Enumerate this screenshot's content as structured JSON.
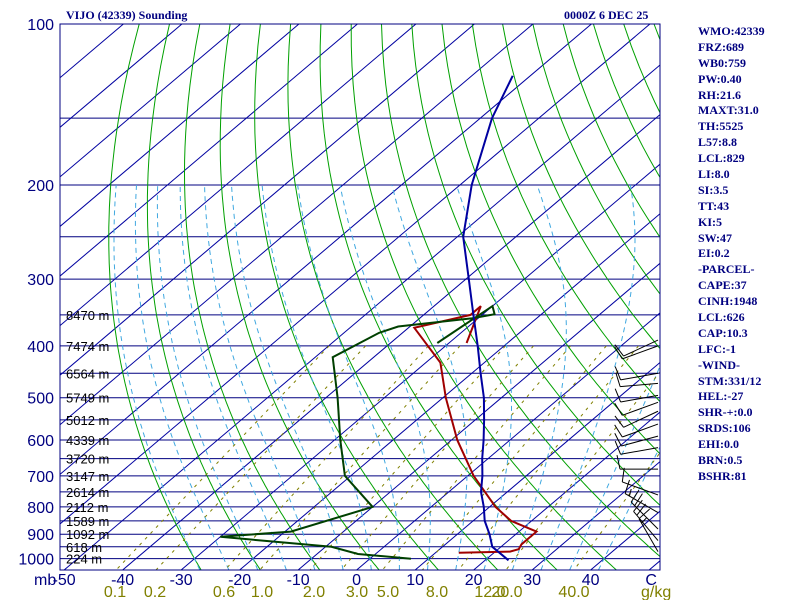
{
  "header": {
    "station": "VIJO (42339) Sounding",
    "time": "0000Z  6 DEC 25"
  },
  "indices": [
    "WMO:42339",
    "FRZ:689",
    "WB0:759",
    "PW:0.40",
    "RH:21.6",
    "MAXT:31.0",
    "TH:5525",
    "L57:8.8",
    "LCL:829",
    "LI:8.0",
    "SI:3.5",
    "TT:43",
    "KI:5",
    "SW:47",
    "EI:0.2",
    "-PARCEL-",
    "CAPE:37",
    "CINH:1948",
    "LCL:626",
    "CAP:10.3",
    "LFC:-1",
    "-WIND-",
    "STM:331/12",
    "HEL:-27",
    "SHR-+:0.0",
    "SRDS:106",
    "EHI:0.0",
    "BRN:0.5",
    "BSHR:81"
  ],
  "colors": {
    "frame": "#000080",
    "isobar": "#000080",
    "isotherm": "#0000a0",
    "dry_adiabat": "#00a000",
    "moist_adiabat": "#40a8e0",
    "mixing_ratio": "#808000",
    "temperature": "#0000a0",
    "dewpoint": "#004000",
    "parcel": "#a00000",
    "wind": "#000000"
  },
  "chart_data": {
    "type": "skew-t",
    "title": "VIJO (42339) Sounding",
    "pressure_unit_label": "mb",
    "mixing_ratio_unit_label": "g/kg",
    "pressure_ticks": [
      "100",
      "200",
      "300",
      "400",
      "500",
      "600",
      "700",
      "800",
      "900",
      "1000"
    ],
    "temperature_ticks": [
      "-50",
      "-40",
      "-30",
      "-20",
      "-10",
      "0",
      "10",
      "20",
      "30",
      "40",
      "C"
    ],
    "mixing_ratio_labels": [
      "0.1",
      "0.2",
      "0.6",
      "1.0",
      "2.0",
      "3.0",
      "5.0",
      "8.0",
      "12.0",
      "20.0",
      "40.0"
    ],
    "height_labels": [
      {
        "p": 350,
        "text": "8470 m"
      },
      {
        "p": 400,
        "text": "7474 m"
      },
      {
        "p": 450,
        "text": "6564 m"
      },
      {
        "p": 500,
        "text": "5749 m"
      },
      {
        "p": 550,
        "text": "5012 m"
      },
      {
        "p": 600,
        "text": "4339 m"
      },
      {
        "p": 650,
        "text": "3720 m"
      },
      {
        "p": 700,
        "text": "3147 m"
      },
      {
        "p": 750,
        "text": "2614 m"
      },
      {
        "p": 800,
        "text": "2112 m"
      },
      {
        "p": 850,
        "text": "1589 m"
      },
      {
        "p": 900,
        "text": "1092 m"
      },
      {
        "p": 950,
        "text": "618 m"
      },
      {
        "p": 1000,
        "text": "224 m"
      }
    ],
    "temperature_profile": [
      {
        "p": 1007,
        "t": 24.0
      },
      {
        "p": 950,
        "t": 18.5
      },
      {
        "p": 900,
        "t": 15.5
      },
      {
        "p": 850,
        "t": 12.0
      },
      {
        "p": 800,
        "t": 9.0
      },
      {
        "p": 750,
        "t": 5.5
      },
      {
        "p": 700,
        "t": 2.5
      },
      {
        "p": 650,
        "t": -1.0
      },
      {
        "p": 600,
        "t": -4.5
      },
      {
        "p": 550,
        "t": -8.5
      },
      {
        "p": 500,
        "t": -13.0
      },
      {
        "p": 450,
        "t": -18.5
      },
      {
        "p": 400,
        "t": -24.5
      },
      {
        "p": 350,
        "t": -31.5
      },
      {
        "p": 300,
        "t": -39.5
      },
      {
        "p": 250,
        "t": -49.0
      },
      {
        "p": 200,
        "t": -58.0
      },
      {
        "p": 150,
        "t": -68.0
      },
      {
        "p": 125,
        "t": -73.0
      }
    ],
    "dewpoint_profile": [
      {
        "p": 1000,
        "t": 7.0
      },
      {
        "p": 980,
        "t": -3.0
      },
      {
        "p": 950,
        "t": -9.0
      },
      {
        "p": 925,
        "t": -22.0
      },
      {
        "p": 910,
        "t": -30.0
      },
      {
        "p": 890,
        "t": -19.0
      },
      {
        "p": 800,
        "t": -10.0
      },
      {
        "p": 700,
        "t": -21.0
      },
      {
        "p": 600,
        "t": -29.0
      },
      {
        "p": 500,
        "t": -38.0
      },
      {
        "p": 420,
        "t": -47.0
      },
      {
        "p": 378,
        "t": -44.0
      },
      {
        "p": 368,
        "t": -42.0
      },
      {
        "p": 355,
        "t": -31.0
      },
      {
        "p": 349,
        "t": -28.0
      },
      {
        "p": 337,
        "t": -30.0
      },
      {
        "p": 395,
        "t": -32.0
      }
    ],
    "parcel_profile": [
      {
        "p": 975,
        "t": 14.0
      },
      {
        "p": 970,
        "t": 22.5
      },
      {
        "p": 960,
        "t": 23.5
      },
      {
        "p": 940,
        "t": 23.0
      },
      {
        "p": 890,
        "t": 23.0
      },
      {
        "p": 850,
        "t": 16.5
      },
      {
        "p": 800,
        "t": 11.0
      },
      {
        "p": 700,
        "t": 1.0
      },
      {
        "p": 600,
        "t": -9.0
      },
      {
        "p": 500,
        "t": -19.5
      },
      {
        "p": 430,
        "t": -27.5
      },
      {
        "p": 370,
        "t": -39.0
      },
      {
        "p": 350,
        "t": -32.0
      },
      {
        "p": 337,
        "t": -32.0
      },
      {
        "p": 395,
        "t": -27.0
      }
    ],
    "wind_barbs": [
      {
        "p": 970,
        "dir": 330,
        "kt": 15
      },
      {
        "p": 925,
        "dir": 320,
        "kt": 20
      },
      {
        "p": 880,
        "dir": 315,
        "kt": 20
      },
      {
        "p": 820,
        "dir": 300,
        "kt": 15
      },
      {
        "p": 760,
        "dir": 290,
        "kt": 10
      },
      {
        "p": 680,
        "dir": 270,
        "kt": 10
      },
      {
        "p": 620,
        "dir": 260,
        "kt": 10
      },
      {
        "p": 590,
        "dir": 255,
        "kt": 10
      },
      {
        "p": 560,
        "dir": 250,
        "kt": 10
      },
      {
        "p": 530,
        "dir": 245,
        "kt": 10
      },
      {
        "p": 510,
        "dir": 250,
        "kt": 10
      },
      {
        "p": 495,
        "dir": 260,
        "kt": 10
      },
      {
        "p": 470,
        "dir": 265,
        "kt": 10
      },
      {
        "p": 450,
        "dir": 260,
        "kt": 10
      },
      {
        "p": 400,
        "dir": 250,
        "kt": 10
      },
      {
        "p": 390,
        "dir": 245,
        "kt": 10
      }
    ]
  }
}
